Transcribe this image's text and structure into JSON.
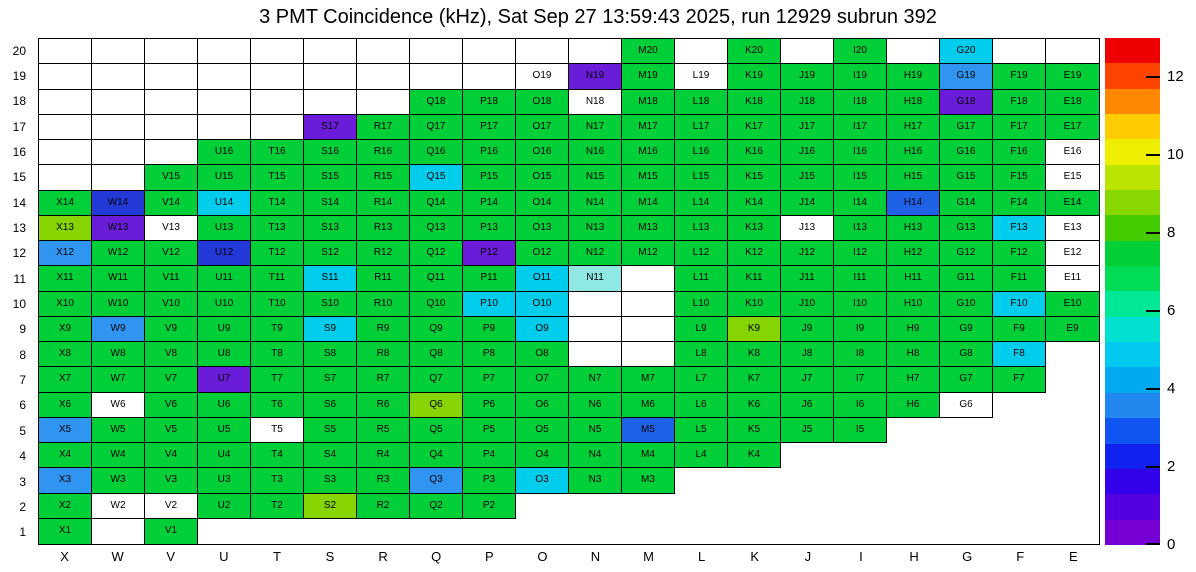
{
  "title": "3 PMT Coincidence (kHz), Sat Sep 27 13:59:43 2025, run 12929 subrun 392",
  "chart_data": {
    "type": "heatmap",
    "title": "3 PMT Coincidence (kHz), Sat Sep 27 13:59:43 2025, run 12929 subrun 392",
    "units": "kHz",
    "x_categories": [
      "X",
      "W",
      "V",
      "U",
      "T",
      "S",
      "R",
      "Q",
      "P",
      "O",
      "N",
      "M",
      "L",
      "K",
      "J",
      "I",
      "H",
      "G",
      "F",
      "E"
    ],
    "y_categories": [
      20,
      19,
      18,
      17,
      16,
      15,
      14,
      13,
      12,
      11,
      10,
      9,
      8,
      7,
      6,
      5,
      4,
      3,
      2,
      1
    ],
    "label_format": "{column}{row}",
    "colorbar": {
      "min": 0,
      "max": 13,
      "ticks": [
        0,
        2,
        4,
        6,
        8,
        10,
        12
      ],
      "palette": [
        "#7700d4",
        "#5500e0",
        "#3300ec",
        "#1122f0",
        "#1155f2",
        "#2288f0",
        "#00aaf0",
        "#00c8ee",
        "#00e0d0",
        "#00e896",
        "#00dc55",
        "#00cf38",
        "#44cc00",
        "#88d800",
        "#bbe400",
        "#eeee00",
        "#ffcc00",
        "#ff8800",
        "#ff4400",
        "#ee0000"
      ]
    },
    "cell_classes": {
      "g": {
        "color": "#00cf38",
        "approx_kHz": 7,
        "meaning": "green bin"
      },
      "yg": {
        "color": "#86d500",
        "approx_kHz": 8.5,
        "meaning": "yellow-green bin"
      },
      "c": {
        "color": "#00cdec",
        "approx_kHz": 4.5,
        "meaning": "cyan bin"
      },
      "lc": {
        "color": "#8fe8e2",
        "approx_kHz": 5.5,
        "meaning": "pale cyan bin"
      },
      "db": {
        "color": "#2f95f0",
        "approx_kHz": 3,
        "meaning": "dodger-blue bin"
      },
      "mb": {
        "color": "#1e62e8",
        "approx_kHz": 2.5,
        "meaning": "medium-blue bin"
      },
      "b": {
        "color": "#2239d8",
        "approx_kHz": 2,
        "meaning": "dark-blue bin"
      },
      "p": {
        "color": "#6a1cd8",
        "approx_kHz": 0.8,
        "meaning": "violet bin"
      },
      "w": {
        "color": "#ffffff",
        "approx_kHz": null,
        "meaning": "labeled cell, no fill"
      },
      "e": {
        "color": "#ffffff",
        "approx_kHz": null,
        "meaning": "empty grid box, no label"
      },
      "n": {
        "color": "#ffffff",
        "approx_kHz": null,
        "meaning": "outside plotted region"
      }
    },
    "cells": [
      [
        "e",
        "e",
        "e",
        "e",
        "e",
        "e",
        "e",
        "e",
        "e",
        "e",
        "e",
        "g",
        "e",
        "g",
        "e",
        "g",
        "e",
        "c",
        "e",
        "e"
      ],
      [
        "e",
        "e",
        "e",
        "e",
        "e",
        "e",
        "e",
        "e",
        "e",
        "w",
        "p",
        "g",
        "w",
        "g",
        "g",
        "g",
        "g",
        "db",
        "g",
        "g"
      ],
      [
        "e",
        "e",
        "e",
        "e",
        "e",
        "e",
        "e",
        "g",
        "g",
        "g",
        "w",
        "g",
        "g",
        "g",
        "g",
        "g",
        "g",
        "p",
        "g",
        "g"
      ],
      [
        "e",
        "e",
        "e",
        "e",
        "e",
        "p",
        "g",
        "g",
        "g",
        "g",
        "g",
        "g",
        "g",
        "g",
        "g",
        "g",
        "g",
        "g",
        "g",
        "g"
      ],
      [
        "e",
        "e",
        "e",
        "g",
        "g",
        "g",
        "g",
        "g",
        "g",
        "g",
        "g",
        "g",
        "g",
        "g",
        "g",
        "g",
        "g",
        "g",
        "g",
        "w"
      ],
      [
        "e",
        "e",
        "g",
        "g",
        "g",
        "g",
        "g",
        "c",
        "g",
        "g",
        "g",
        "g",
        "g",
        "g",
        "g",
        "g",
        "g",
        "g",
        "g",
        "w"
      ],
      [
        "g",
        "b",
        "g",
        "c",
        "g",
        "g",
        "g",
        "g",
        "g",
        "g",
        "g",
        "g",
        "g",
        "g",
        "g",
        "g",
        "mb",
        "g",
        "g",
        "g"
      ],
      [
        "yg",
        "p",
        "w",
        "g",
        "g",
        "g",
        "g",
        "g",
        "g",
        "g",
        "g",
        "g",
        "g",
        "g",
        "w",
        "g",
        "g",
        "g",
        "c",
        "w"
      ],
      [
        "db",
        "g",
        "g",
        "b",
        "g",
        "g",
        "g",
        "g",
        "p",
        "g",
        "g",
        "g",
        "g",
        "g",
        "g",
        "g",
        "g",
        "g",
        "g",
        "w"
      ],
      [
        "g",
        "g",
        "g",
        "g",
        "g",
        "c",
        "g",
        "g",
        "g",
        "c",
        "lc",
        "e",
        "g",
        "g",
        "g",
        "g",
        "g",
        "g",
        "g",
        "w"
      ],
      [
        "g",
        "g",
        "g",
        "g",
        "g",
        "g",
        "g",
        "g",
        "c",
        "c",
        "e",
        "e",
        "g",
        "g",
        "g",
        "g",
        "g",
        "g",
        "c",
        "g"
      ],
      [
        "g",
        "db",
        "g",
        "g",
        "g",
        "c",
        "g",
        "g",
        "g",
        "c",
        "e",
        "e",
        "g",
        "yg",
        "g",
        "g",
        "g",
        "g",
        "g",
        "g"
      ],
      [
        "g",
        "g",
        "g",
        "g",
        "g",
        "g",
        "g",
        "g",
        "g",
        "g",
        "e",
        "e",
        "g",
        "g",
        "g",
        "g",
        "g",
        "g",
        "c",
        "n"
      ],
      [
        "g",
        "g",
        "g",
        "p",
        "g",
        "g",
        "g",
        "g",
        "g",
        "g",
        "g",
        "g",
        "g",
        "g",
        "g",
        "g",
        "g",
        "g",
        "g",
        "n"
      ],
      [
        "g",
        "w",
        "g",
        "g",
        "g",
        "g",
        "g",
        "yg",
        "g",
        "g",
        "g",
        "g",
        "g",
        "g",
        "g",
        "g",
        "g",
        "w",
        "n",
        "n"
      ],
      [
        "db",
        "g",
        "g",
        "g",
        "w",
        "g",
        "g",
        "g",
        "g",
        "g",
        "g",
        "mb",
        "g",
        "g",
        "g",
        "g",
        "n",
        "n",
        "n",
        "n"
      ],
      [
        "g",
        "g",
        "g",
        "g",
        "g",
        "g",
        "g",
        "g",
        "g",
        "g",
        "g",
        "g",
        "g",
        "g",
        "n",
        "n",
        "n",
        "n",
        "n",
        "n"
      ],
      [
        "db",
        "g",
        "g",
        "g",
        "g",
        "g",
        "g",
        "db",
        "g",
        "c",
        "g",
        "g",
        "n",
        "n",
        "n",
        "n",
        "n",
        "n",
        "n",
        "n"
      ],
      [
        "g",
        "w",
        "w",
        "g",
        "g",
        "yg",
        "g",
        "g",
        "g",
        "n",
        "n",
        "n",
        "n",
        "n",
        "n",
        "n",
        "n",
        "n",
        "n",
        "n"
      ],
      [
        "g",
        "e",
        "g",
        "n",
        "n",
        "n",
        "n",
        "n",
        "n",
        "n",
        "n",
        "n",
        "n",
        "n",
        "n",
        "n",
        "n",
        "n",
        "n",
        "n"
      ]
    ]
  }
}
